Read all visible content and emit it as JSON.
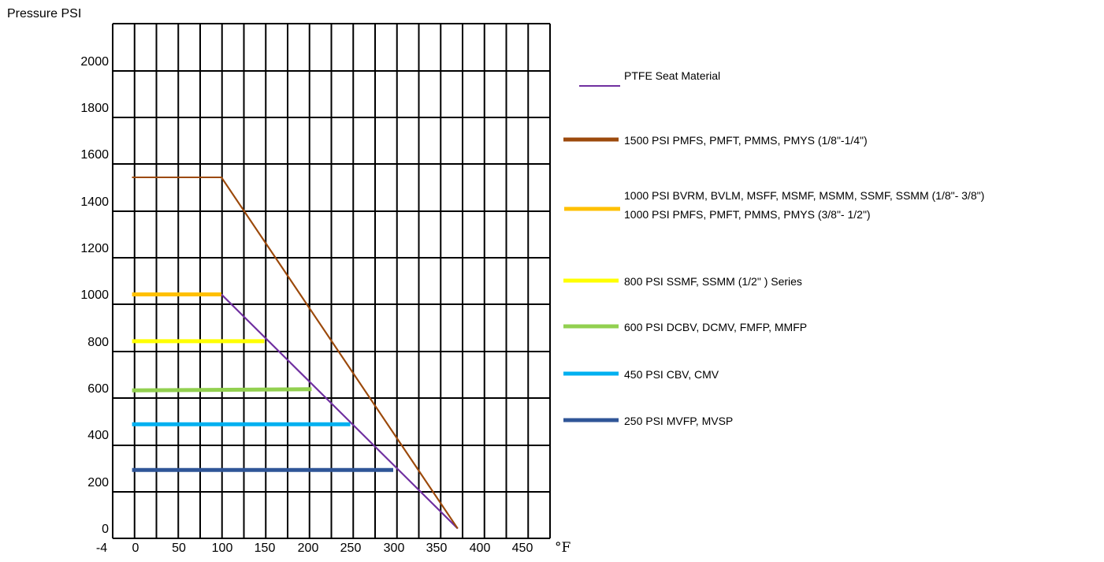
{
  "chart_data": {
    "type": "line",
    "ylabel": "Pressure PSI",
    "xunit": "°F",
    "x_tick_labels": [
      "-4",
      "0",
      "50",
      "100",
      "150",
      "200",
      "250",
      "300",
      "350",
      "400",
      "450"
    ],
    "y_tick_labels": [
      "0",
      "200",
      "400",
      "600",
      "800",
      "1000",
      "1200",
      "1400",
      "1600",
      "1800",
      "2000"
    ],
    "xlim": [
      -4,
      475
    ],
    "ylim": [
      -50,
      2150
    ],
    "grid": true,
    "legend_position": "right",
    "series": [
      {
        "name": "PTFE Seat Material",
        "color": "#7030a0",
        "points": [
          [
            100,
            1000
          ],
          [
            375,
            0
          ]
        ]
      },
      {
        "name": "1500 PSI PMFS, PMFT, PMMS, PMYS (1/8\"-1/4\")",
        "color": "#9c4a0c",
        "points": [
          [
            -4,
            1500
          ],
          [
            100,
            1500
          ],
          [
            375,
            0
          ]
        ]
      },
      {
        "name": "1000 PSI BVRM, BVLM, MSFF, MSMF, MSMM, SSMF, SSMM (1/8\"- 3/8\")",
        "name_line2": "1000 PSI PMFS, PMFT, PMMS, PMYS (3/8\"- 1/2\")",
        "color": "#ffc000",
        "points": [
          [
            -4,
            1000
          ],
          [
            100,
            1000
          ]
        ]
      },
      {
        "name": "800 PSI SSMF, SSMM (1/2\" ) Series",
        "color": "#ffff00",
        "points": [
          [
            -4,
            800
          ],
          [
            150,
            800
          ]
        ]
      },
      {
        "name": "600 PSI DCBV, DCMV, FMFP, MMFP",
        "color": "#92d050",
        "points": [
          [
            -4,
            590
          ],
          [
            205,
            595
          ]
        ]
      },
      {
        "name": "450 PSI CBV, CMV",
        "color": "#00b0f0",
        "points": [
          [
            -4,
            445
          ],
          [
            250,
            445
          ]
        ]
      },
      {
        "name": "250 PSI MVFP, MVSP",
        "color": "#2f5597",
        "points": [
          [
            -4,
            250
          ],
          [
            300,
            250
          ]
        ]
      }
    ]
  }
}
